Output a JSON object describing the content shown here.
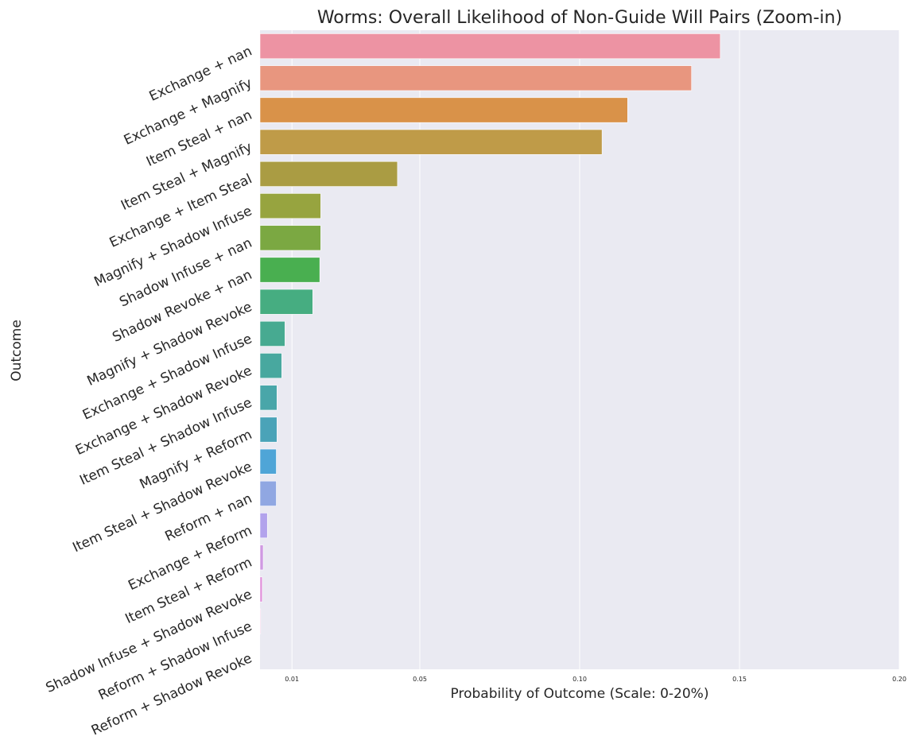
{
  "chart_data": {
    "type": "bar",
    "orientation": "horizontal",
    "title": "Worms: Overall Likelihood of Non-Guide Will Pairs (Zoom-in)",
    "xlabel": "Probability of Outcome (Scale: 0-20%)",
    "ylabel": "Outcome",
    "xlim": [
      0,
      0.2
    ],
    "xticks": [
      0.01,
      0.05,
      0.1,
      0.15,
      0.2
    ],
    "xtick_labels": [
      "0.01",
      "0.05",
      "0.10",
      "0.15",
      "0.20"
    ],
    "grid": true,
    "categories": [
      "Exchange + nan",
      "Exchange + Magnify",
      "Item Steal + nan",
      "Item Steal + Magnify",
      "Exchange + Item Steal",
      "Magnify + Shadow Infuse",
      "Shadow Infuse + nan",
      "Shadow Revoke + nan",
      "Magnify + Shadow Revoke",
      "Exchange + Shadow Infuse",
      "Exchange + Shadow Revoke",
      "Item Steal + Shadow Infuse",
      "Magnify + Reform",
      "Item Steal + Shadow Revoke",
      "Reform + nan",
      "Exchange + Reform",
      "Item Steal + Reform",
      "Shadow Infuse + Shadow Revoke",
      "Reform + Shadow Infuse",
      "Reform + Shadow Revoke"
    ],
    "values": [
      0.144,
      0.135,
      0.115,
      0.107,
      0.043,
      0.019,
      0.019,
      0.0187,
      0.0165,
      0.0078,
      0.0068,
      0.0053,
      0.0053,
      0.0051,
      0.0051,
      0.0023,
      0.001,
      0.0007,
      0.0002,
      0.0
    ],
    "colors": [
      "#ed93a3",
      "#e8967f",
      "#d99249",
      "#bf9b48",
      "#aa9c43",
      "#97a43f",
      "#7ba842",
      "#49af50",
      "#46ad81",
      "#47aa91",
      "#48a89f",
      "#49a6a9",
      "#4aa3b8",
      "#4fa5d7",
      "#90a7e2",
      "#b2a3ec",
      "#cf99e2",
      "#df8dd8",
      "#e88ec9",
      "#ec90b8"
    ],
    "background_color": "#eaeaf2",
    "grid_color": "#ffffff"
  }
}
